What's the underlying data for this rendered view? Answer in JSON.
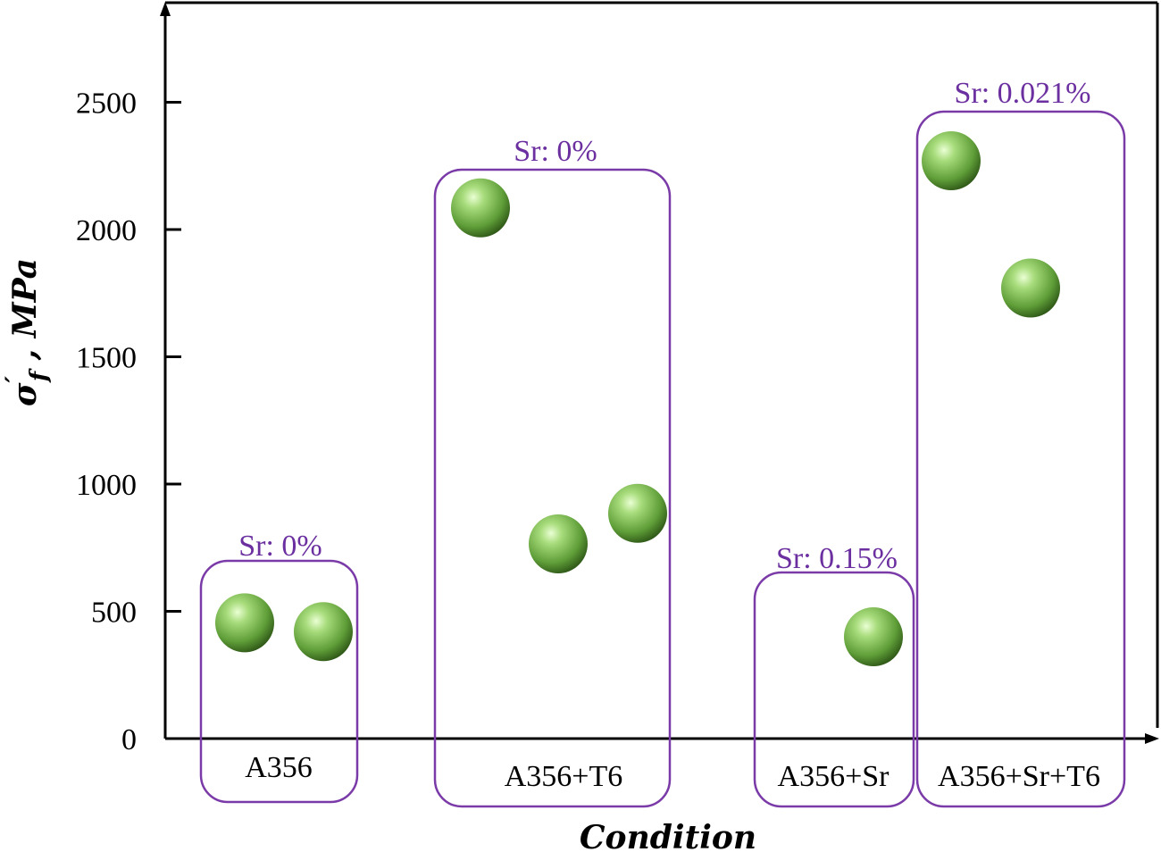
{
  "colors": {
    "point": "#6fb846",
    "point_highlight": "#d9f7b8",
    "point_shadow": "#2f5e17",
    "group_box": "#7a3aa8",
    "group_label": "#6b2fa0",
    "axis": "#000000"
  },
  "chart_data": {
    "type": "scatter",
    "xlabel": "Condition",
    "ylabel": {
      "main": "σ",
      "prime": "′",
      "subscript": "f",
      "unit": " , MPa"
    },
    "ylim": [
      0,
      2850
    ],
    "yticks": [
      0,
      500,
      1000,
      1500,
      2000,
      2500
    ],
    "grid": false,
    "legend": "none",
    "categories": [
      "A356",
      "A356+T6",
      "A356+Sr",
      "A356+Sr+T6"
    ],
    "groups": [
      {
        "label": "Sr: 0%",
        "category": "A356",
        "points": [
          455,
          420
        ]
      },
      {
        "label": "Sr: 0%",
        "category": "A356+T6",
        "points": [
          2085,
          765,
          885
        ]
      },
      {
        "label": "Sr: 0.15%",
        "category": "A356+Sr",
        "points": [
          400
        ]
      },
      {
        "label": "Sr: 0.021%",
        "category": "A356+Sr+T6",
        "points": [
          2270,
          1770
        ]
      }
    ]
  }
}
